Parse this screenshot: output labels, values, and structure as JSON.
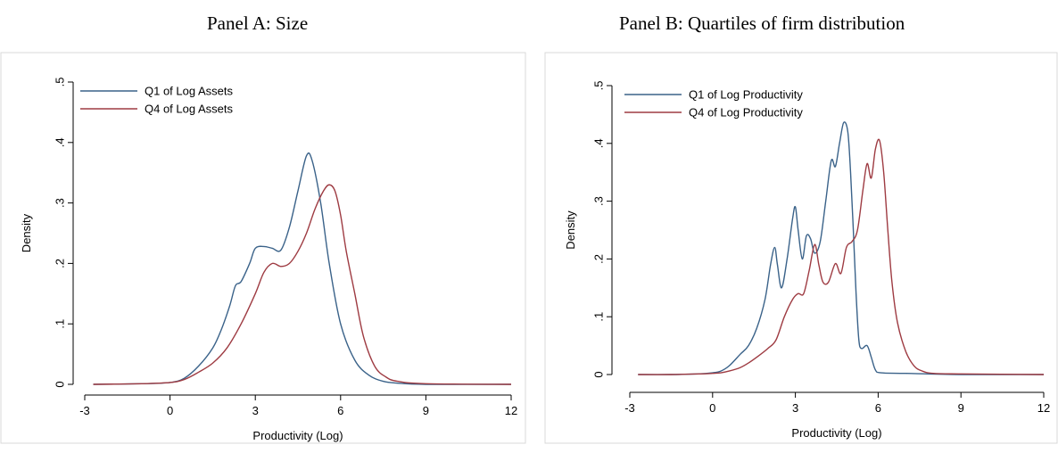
{
  "panels": {
    "a": {
      "title": "Panel A: Size"
    },
    "b": {
      "title": "Panel B: Quartiles of firm distribution"
    }
  },
  "colors": {
    "q1": "#3a6289",
    "q4": "#9e3b42",
    "frame": "#d9d9d9",
    "axis": "#000000"
  },
  "chart_data": [
    {
      "type": "line",
      "title": "Panel A: Size",
      "xlabel": "Productivity (Log)",
      "ylabel": "Density",
      "xlim": [
        -3,
        12
      ],
      "ylim": [
        0,
        0.5
      ],
      "xticks": [
        -3,
        0,
        3,
        6,
        9,
        12
      ],
      "xtick_labels": [
        "-3",
        "0",
        "3",
        "6",
        "9",
        "12"
      ],
      "yticks": [
        0,
        0.1,
        0.2,
        0.3,
        0.4,
        0.5
      ],
      "ytick_labels": [
        "0",
        ".1",
        ".2",
        ".3",
        ".4",
        ".5"
      ],
      "grid": false,
      "legend": "top-left",
      "series": [
        {
          "name": "Q1 of Log Assets",
          "color": "#3a6289",
          "x": [
            -2.7,
            -1.0,
            0.0,
            0.5,
            1.0,
            1.5,
            1.8,
            2.1,
            2.3,
            2.5,
            2.8,
            3.0,
            3.3,
            3.6,
            3.9,
            4.2,
            4.5,
            4.8,
            5.0,
            5.3,
            5.6,
            6.0,
            6.5,
            7.0,
            7.5,
            8.0,
            9.0,
            12.0
          ],
          "y": [
            0.0,
            0.001,
            0.003,
            0.01,
            0.03,
            0.06,
            0.09,
            0.13,
            0.163,
            0.17,
            0.2,
            0.225,
            0.228,
            0.225,
            0.222,
            0.26,
            0.32,
            0.378,
            0.37,
            0.3,
            0.2,
            0.1,
            0.04,
            0.015,
            0.005,
            0.002,
            0.0,
            0.0
          ]
        },
        {
          "name": "Q4 of Log Assets",
          "color": "#9e3b42",
          "x": [
            -2.7,
            -1.0,
            0.0,
            0.5,
            1.0,
            1.5,
            2.0,
            2.5,
            3.0,
            3.3,
            3.6,
            3.9,
            4.2,
            4.5,
            4.8,
            5.1,
            5.4,
            5.6,
            5.8,
            6.0,
            6.2,
            6.5,
            6.8,
            7.2,
            7.6,
            8.0,
            9.0,
            12.0
          ],
          "y": [
            0.0,
            0.001,
            0.003,
            0.008,
            0.02,
            0.035,
            0.06,
            0.1,
            0.15,
            0.185,
            0.2,
            0.195,
            0.2,
            0.22,
            0.25,
            0.29,
            0.32,
            0.33,
            0.32,
            0.28,
            0.22,
            0.15,
            0.08,
            0.03,
            0.012,
            0.005,
            0.001,
            0.0
          ]
        }
      ]
    },
    {
      "type": "line",
      "title": "Panel B: Quartiles of firm distribution",
      "xlabel": "Productivity (Log)",
      "ylabel": "Density",
      "xlim": [
        -3,
        12
      ],
      "ylim": [
        0,
        0.5
      ],
      "xticks": [
        -3,
        0,
        3,
        6,
        9,
        12
      ],
      "xtick_labels": [
        "-3",
        "0",
        "3",
        "6",
        "9",
        "12"
      ],
      "yticks": [
        0,
        0.1,
        0.2,
        0.3,
        0.4,
        0.5
      ],
      "ytick_labels": [
        "0",
        ".1",
        ".2",
        ".3",
        ".4",
        ".5"
      ],
      "grid": false,
      "legend": "top-left",
      "series": [
        {
          "name": "Q1 of Log Productivity",
          "color": "#3a6289",
          "x": [
            -2.7,
            -1.5,
            -0.5,
            0.0,
            0.3,
            0.6,
            1.0,
            1.3,
            1.6,
            1.9,
            2.1,
            2.25,
            2.35,
            2.5,
            2.7,
            2.9,
            3.0,
            3.1,
            3.25,
            3.4,
            3.55,
            3.7,
            3.9,
            4.1,
            4.3,
            4.45,
            4.6,
            4.75,
            4.9,
            5.0,
            5.1,
            5.2,
            5.3,
            5.4,
            5.6,
            5.75,
            5.9,
            6.1,
            7.0,
            9.0,
            12.0
          ],
          "y": [
            0.0,
            0.0,
            0.001,
            0.003,
            0.006,
            0.015,
            0.035,
            0.05,
            0.08,
            0.13,
            0.19,
            0.22,
            0.19,
            0.15,
            0.2,
            0.27,
            0.29,
            0.25,
            0.2,
            0.24,
            0.235,
            0.21,
            0.23,
            0.3,
            0.37,
            0.36,
            0.4,
            0.436,
            0.42,
            0.35,
            0.25,
            0.14,
            0.06,
            0.045,
            0.05,
            0.03,
            0.008,
            0.003,
            0.002,
            0.0,
            0.0
          ]
        },
        {
          "name": "Q4 of Log Productivity",
          "color": "#9e3b42",
          "x": [
            -2.7,
            -1.5,
            -0.5,
            0.0,
            0.3,
            0.6,
            1.0,
            1.3,
            1.6,
            2.0,
            2.3,
            2.6,
            2.9,
            3.1,
            3.3,
            3.5,
            3.7,
            3.85,
            4.0,
            4.2,
            4.45,
            4.65,
            4.85,
            5.05,
            5.25,
            5.45,
            5.6,
            5.75,
            5.9,
            6.05,
            6.2,
            6.35,
            6.5,
            6.7,
            7.0,
            7.3,
            7.6,
            8.0,
            9.0,
            12.0
          ],
          "y": [
            0.0,
            0.0,
            0.001,
            0.002,
            0.003,
            0.006,
            0.012,
            0.02,
            0.03,
            0.045,
            0.06,
            0.1,
            0.13,
            0.14,
            0.14,
            0.18,
            0.225,
            0.19,
            0.16,
            0.16,
            0.192,
            0.175,
            0.22,
            0.23,
            0.25,
            0.32,
            0.365,
            0.34,
            0.39,
            0.405,
            0.35,
            0.25,
            0.16,
            0.09,
            0.04,
            0.015,
            0.006,
            0.002,
            0.001,
            0.0
          ]
        }
      ]
    }
  ]
}
